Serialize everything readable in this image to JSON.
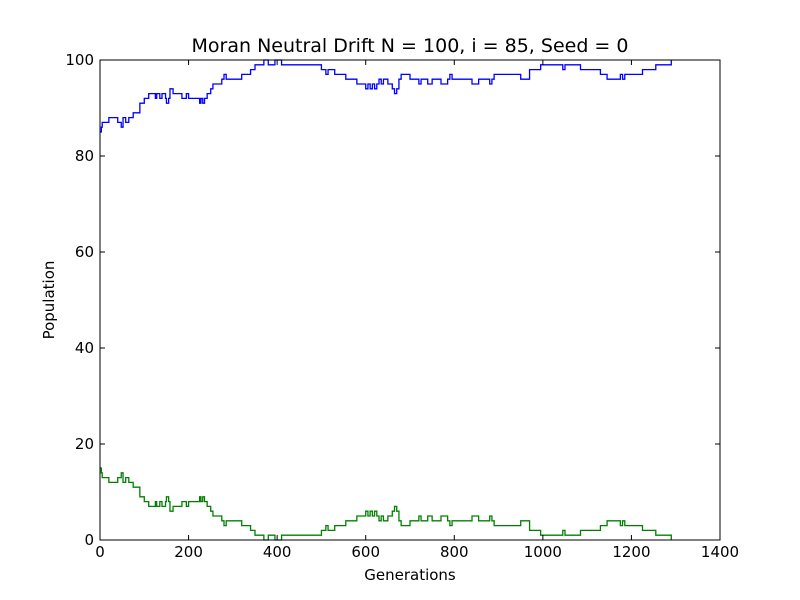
{
  "chart_data": {
    "type": "line",
    "title": "Moran Neutral Drift N = 100, i = 85, Seed = 0",
    "xlabel": "Generations",
    "ylabel": "Population",
    "xlim": [
      0,
      1400
    ],
    "ylim": [
      0,
      100
    ],
    "x_ticks": [
      0,
      200,
      400,
      600,
      800,
      1000,
      1200,
      1400
    ],
    "y_ticks": [
      0,
      20,
      40,
      60,
      80,
      100
    ],
    "grid": false,
    "legend": "none",
    "series": [
      {
        "color": "#0000ff",
        "points": [
          [
            0,
            85
          ],
          [
            3,
            86
          ],
          [
            5,
            87
          ],
          [
            20,
            88
          ],
          [
            40,
            87
          ],
          [
            48,
            86
          ],
          [
            52,
            88
          ],
          [
            58,
            87
          ],
          [
            65,
            88
          ],
          [
            75,
            89
          ],
          [
            90,
            91
          ],
          [
            100,
            92
          ],
          [
            110,
            93
          ],
          [
            125,
            92
          ],
          [
            128,
            93
          ],
          [
            135,
            92
          ],
          [
            140,
            93
          ],
          [
            148,
            92
          ],
          [
            150,
            91
          ],
          [
            155,
            92
          ],
          [
            158,
            94
          ],
          [
            165,
            93
          ],
          [
            185,
            92
          ],
          [
            195,
            93
          ],
          [
            200,
            92
          ],
          [
            225,
            91
          ],
          [
            228,
            92
          ],
          [
            232,
            91
          ],
          [
            236,
            92
          ],
          [
            242,
            93
          ],
          [
            250,
            94
          ],
          [
            255,
            95
          ],
          [
            275,
            96
          ],
          [
            280,
            97
          ],
          [
            285,
            96
          ],
          [
            320,
            97
          ],
          [
            330,
            97
          ],
          [
            340,
            98
          ],
          [
            350,
            99
          ],
          [
            370,
            100
          ],
          [
            380,
            99
          ],
          [
            395,
            100
          ],
          [
            410,
            99
          ],
          [
            500,
            98
          ],
          [
            510,
            97
          ],
          [
            515,
            98
          ],
          [
            530,
            97
          ],
          [
            555,
            96
          ],
          [
            570,
            96
          ],
          [
            580,
            95
          ],
          [
            600,
            94
          ],
          [
            605,
            95
          ],
          [
            610,
            94
          ],
          [
            615,
            95
          ],
          [
            620,
            94
          ],
          [
            625,
            95
          ],
          [
            630,
            96
          ],
          [
            635,
            95
          ],
          [
            640,
            96
          ],
          [
            650,
            95
          ],
          [
            660,
            94
          ],
          [
            665,
            93
          ],
          [
            670,
            94
          ],
          [
            675,
            96
          ],
          [
            680,
            97
          ],
          [
            700,
            96
          ],
          [
            720,
            95
          ],
          [
            725,
            96
          ],
          [
            740,
            95
          ],
          [
            750,
            96
          ],
          [
            770,
            95
          ],
          [
            785,
            96
          ],
          [
            790,
            97
          ],
          [
            795,
            96
          ],
          [
            815,
            96
          ],
          [
            840,
            95
          ],
          [
            855,
            96
          ],
          [
            880,
            95
          ],
          [
            885,
            96
          ],
          [
            890,
            97
          ],
          [
            950,
            96
          ],
          [
            970,
            98
          ],
          [
            995,
            99
          ],
          [
            1045,
            98
          ],
          [
            1050,
            99
          ],
          [
            1085,
            98
          ],
          [
            1130,
            97
          ],
          [
            1145,
            96
          ],
          [
            1175,
            97
          ],
          [
            1180,
            96
          ],
          [
            1185,
            97
          ],
          [
            1210,
            97
          ],
          [
            1225,
            98
          ],
          [
            1255,
            99
          ],
          [
            1290,
            100
          ]
        ]
      },
      {
        "color": "#008000",
        "points": [
          [
            0,
            15
          ],
          [
            3,
            14
          ],
          [
            5,
            13
          ],
          [
            20,
            12
          ],
          [
            40,
            13
          ],
          [
            48,
            14
          ],
          [
            52,
            12
          ],
          [
            58,
            13
          ],
          [
            65,
            12
          ],
          [
            75,
            11
          ],
          [
            90,
            9
          ],
          [
            100,
            8
          ],
          [
            110,
            7
          ],
          [
            125,
            8
          ],
          [
            128,
            7
          ],
          [
            135,
            8
          ],
          [
            140,
            7
          ],
          [
            148,
            8
          ],
          [
            150,
            9
          ],
          [
            155,
            8
          ],
          [
            158,
            6
          ],
          [
            165,
            7
          ],
          [
            185,
            8
          ],
          [
            195,
            7
          ],
          [
            200,
            8
          ],
          [
            225,
            9
          ],
          [
            228,
            8
          ],
          [
            232,
            9
          ],
          [
            236,
            8
          ],
          [
            242,
            7
          ],
          [
            250,
            6
          ],
          [
            255,
            5
          ],
          [
            275,
            4
          ],
          [
            280,
            3
          ],
          [
            285,
            4
          ],
          [
            320,
            3
          ],
          [
            330,
            3
          ],
          [
            340,
            2
          ],
          [
            350,
            1
          ],
          [
            370,
            0
          ],
          [
            380,
            1
          ],
          [
            395,
            0
          ],
          [
            410,
            1
          ],
          [
            500,
            2
          ],
          [
            510,
            3
          ],
          [
            515,
            2
          ],
          [
            530,
            3
          ],
          [
            555,
            4
          ],
          [
            570,
            4
          ],
          [
            580,
            5
          ],
          [
            600,
            6
          ],
          [
            605,
            5
          ],
          [
            610,
            6
          ],
          [
            615,
            5
          ],
          [
            620,
            6
          ],
          [
            625,
            5
          ],
          [
            630,
            4
          ],
          [
            635,
            5
          ],
          [
            640,
            4
          ],
          [
            650,
            5
          ],
          [
            660,
            6
          ],
          [
            665,
            7
          ],
          [
            670,
            6
          ],
          [
            675,
            4
          ],
          [
            680,
            3
          ],
          [
            700,
            4
          ],
          [
            720,
            5
          ],
          [
            725,
            4
          ],
          [
            740,
            5
          ],
          [
            750,
            4
          ],
          [
            770,
            5
          ],
          [
            785,
            4
          ],
          [
            790,
            3
          ],
          [
            795,
            4
          ],
          [
            815,
            4
          ],
          [
            840,
            5
          ],
          [
            855,
            4
          ],
          [
            880,
            5
          ],
          [
            885,
            4
          ],
          [
            890,
            3
          ],
          [
            950,
            4
          ],
          [
            970,
            2
          ],
          [
            995,
            1
          ],
          [
            1045,
            2
          ],
          [
            1050,
            1
          ],
          [
            1085,
            2
          ],
          [
            1130,
            3
          ],
          [
            1145,
            4
          ],
          [
            1175,
            3
          ],
          [
            1180,
            4
          ],
          [
            1185,
            3
          ],
          [
            1210,
            3
          ],
          [
            1225,
            2
          ],
          [
            1255,
            1
          ],
          [
            1290,
            0
          ]
        ]
      }
    ]
  }
}
